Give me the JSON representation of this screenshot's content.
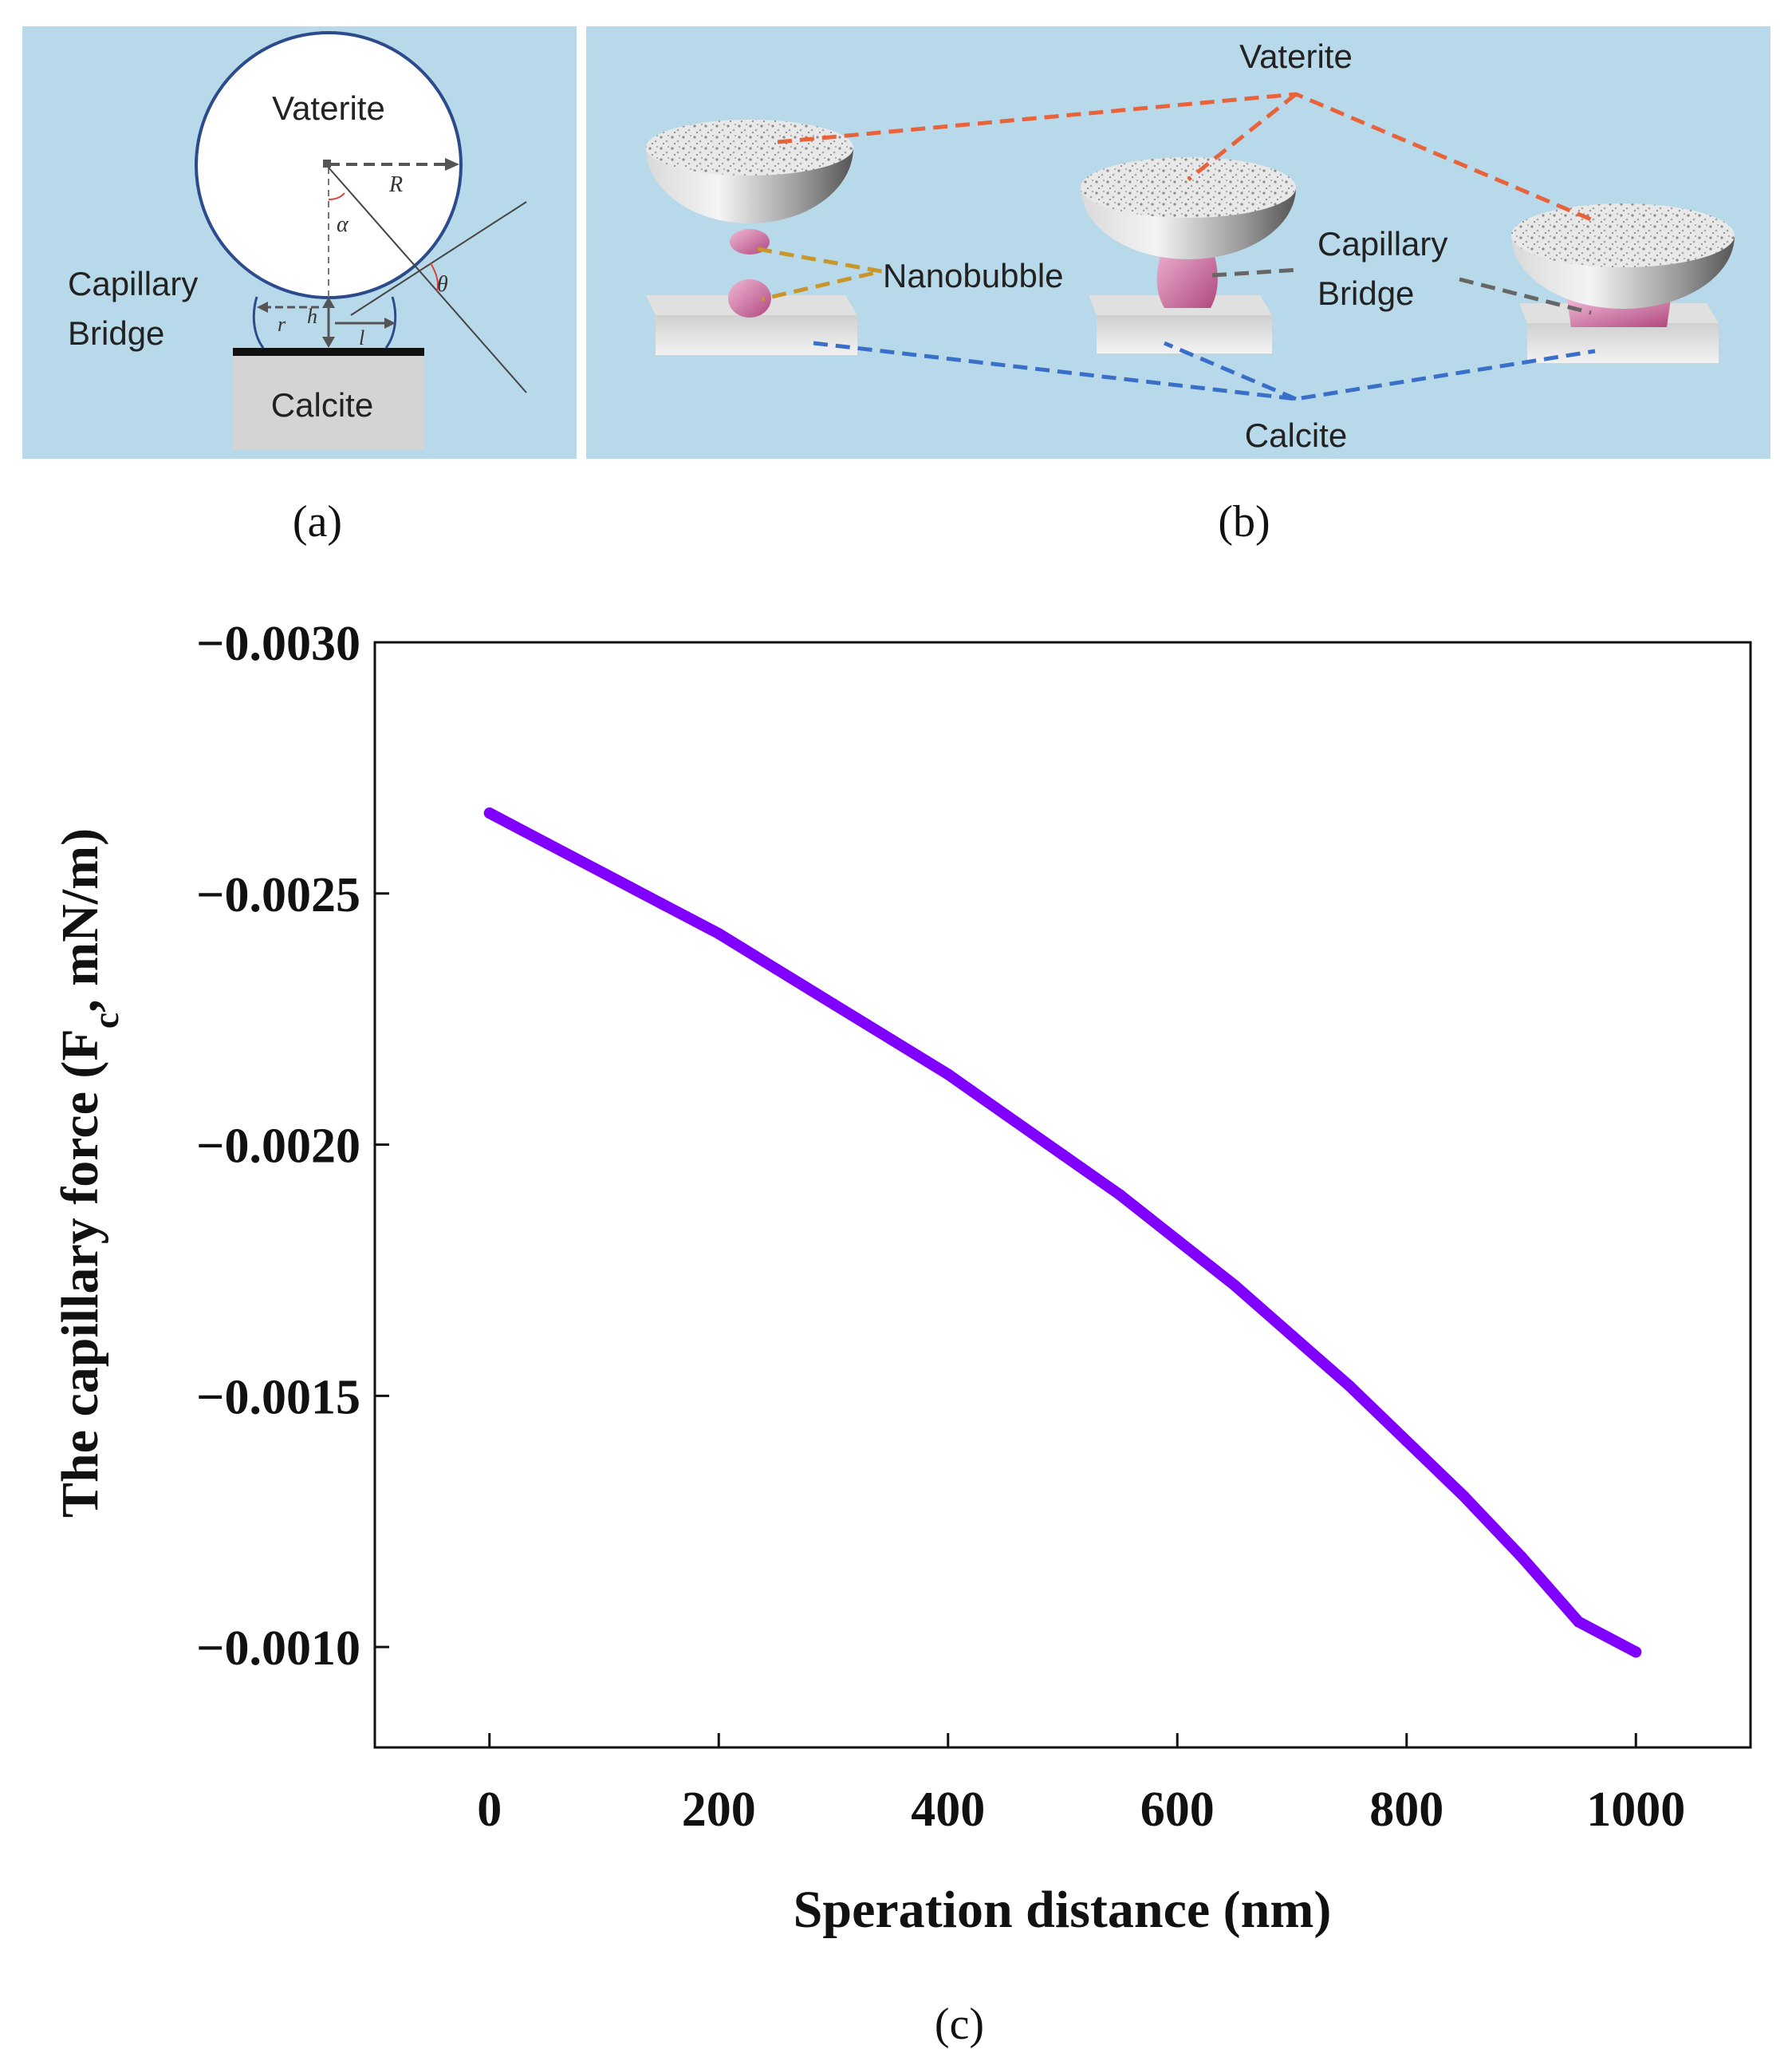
{
  "panels": {
    "a": {
      "caption": "(a)",
      "labels": {
        "vaterite": "Vaterite",
        "capillary": "Capillary",
        "bridge": "Bridge",
        "calcite": "Calcite",
        "R": "R",
        "alpha": "α",
        "theta": "θ",
        "r": "r",
        "h": "h",
        "l": "l"
      }
    },
    "b": {
      "caption": "(b)",
      "labels": {
        "vaterite": "Vaterite",
        "nanobubble": "Nanobubble",
        "capillary": "Capillary",
        "bridge": "Bridge",
        "calcite": "Calcite"
      }
    },
    "c": {
      "caption": "(c)"
    }
  },
  "colors": {
    "panel_bg": "#b8d9ea",
    "curve": "#8000ff",
    "vaterite_lines": "#e8623a",
    "nanobubble_lines": "#c9962a",
    "bridge_lines": "#666666",
    "calcite_lines": "#3a6fc9",
    "bubble": "#d77aaa"
  },
  "chart_data": {
    "type": "line",
    "title": "",
    "xlabel": "Speration distance (nm)",
    "ylabel_main": "The capillary force (F",
    "ylabel_sub": "c",
    "ylabel_tail": ", mN/m)",
    "xlim": [
      -100,
      1100
    ],
    "ylim": [
      -0.0008,
      -0.003
    ],
    "xticks": [
      0,
      200,
      400,
      600,
      800,
      1000
    ],
    "xtick_labels": [
      "0",
      "200",
      "400",
      "600",
      "800",
      "1000"
    ],
    "yticks": [
      -0.003,
      -0.0025,
      -0.002,
      -0.0015,
      -0.001
    ],
    "ytick_labels": [
      "−0.0030",
      "−0.0025",
      "−0.0020",
      "−0.0015",
      "−0.0010"
    ],
    "series": [
      {
        "name": "capillary force",
        "x": [
          0,
          50,
          100,
          150,
          200,
          250,
          300,
          350,
          400,
          450,
          500,
          550,
          600,
          650,
          700,
          750,
          800,
          850,
          900,
          950,
          1000
        ],
        "y": [
          -0.00266,
          -0.0026,
          -0.00254,
          -0.00248,
          -0.00242,
          -0.00235,
          -0.00228,
          -0.00221,
          -0.00214,
          -0.00206,
          -0.00198,
          -0.0019,
          -0.00181,
          -0.00172,
          -0.00162,
          -0.00152,
          -0.00141,
          -0.0013,
          -0.00118,
          -0.00105,
          -0.00099
        ]
      }
    ]
  }
}
